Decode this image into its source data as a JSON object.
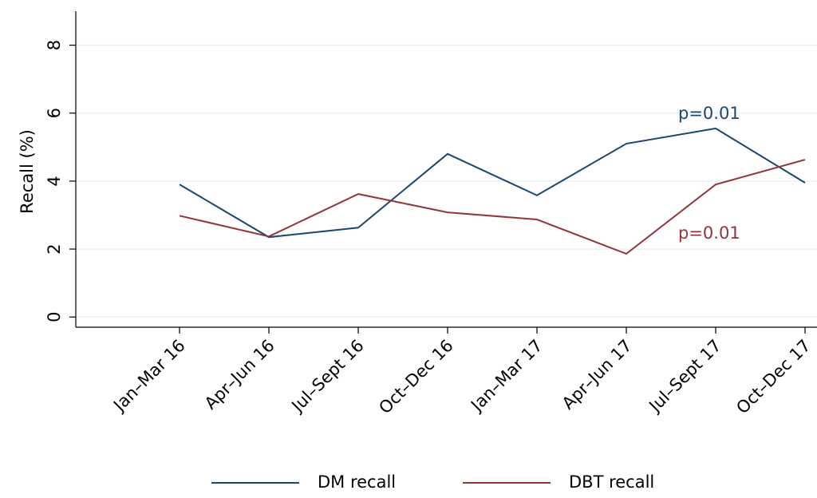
{
  "chart_data": {
    "type": "line",
    "y_label": "Recall (%)",
    "categories": [
      "Jan–Mar 16",
      "Apr–Jun 16",
      "Jul–Sept 16",
      "Oct–Dec 16",
      "Jan–Mar 17",
      "Apr–Jun 17",
      "Jul–Sept 17",
      "Oct–Dec 17"
    ],
    "series": [
      {
        "name": "DM recall",
        "color": "#1a476f",
        "values": [
          3.9,
          2.35,
          2.63,
          4.8,
          3.58,
          5.1,
          5.55,
          3.95
        ]
      },
      {
        "name": "DBT recall",
        "color": "#90353b",
        "values": [
          2.98,
          2.37,
          3.62,
          3.08,
          2.87,
          1.86,
          3.9,
          4.63
        ]
      }
    ],
    "annotations": [
      {
        "text": "p=0.01",
        "color": "#1a476f"
      },
      {
        "text": "p=0.01",
        "color": "#90353b"
      }
    ],
    "ylim": [
      -0.3,
      9.0
    ],
    "yticks": [
      0,
      2,
      4,
      6,
      8
    ],
    "grid": true,
    "legend": "bottom"
  }
}
